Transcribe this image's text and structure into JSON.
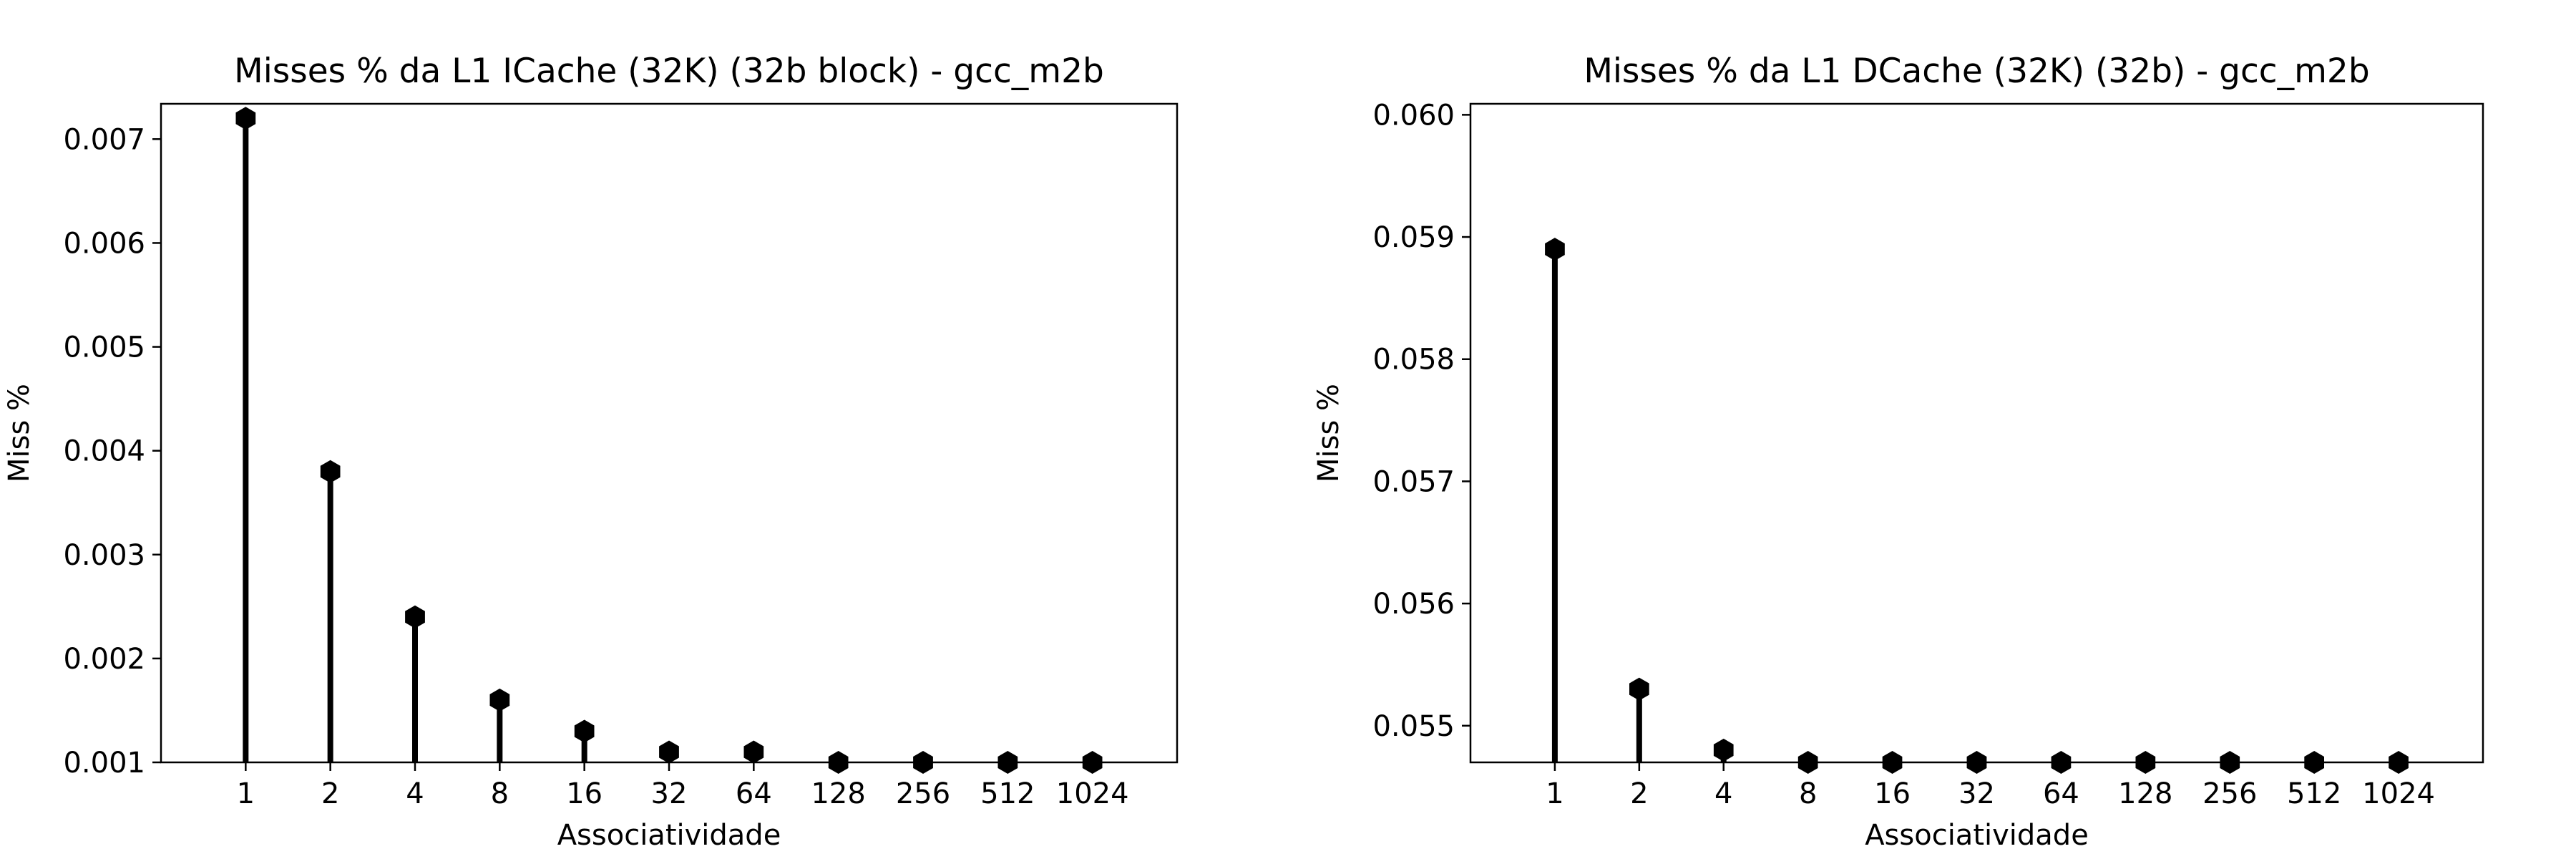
{
  "chart_data": [
    {
      "type": "stem",
      "title": "Misses % da L1 ICache (32K) (32b block) - gcc_m2b",
      "xlabel": "Associatividade",
      "ylabel": "Miss %",
      "categories": [
        "1",
        "2",
        "4",
        "8",
        "16",
        "32",
        "64",
        "128",
        "256",
        "512",
        "1024"
      ],
      "values": [
        0.0072,
        0.0038,
        0.0024,
        0.0016,
        0.0013,
        0.0011,
        0.0011,
        0.001,
        0.001,
        0.001,
        0.001
      ],
      "ylim": [
        0.001,
        0.00734
      ],
      "yticks": [
        0.001,
        0.002,
        0.003,
        0.004,
        0.005,
        0.006,
        0.007
      ],
      "ytick_labels": [
        "0.001",
        "0.002",
        "0.003",
        "0.004",
        "0.005",
        "0.006",
        "0.007"
      ],
      "grid": false,
      "color": "#000000",
      "marker": "hexagon"
    },
    {
      "type": "stem",
      "title": "Misses % da L1 DCache (32K) (32b) - gcc_m2b",
      "xlabel": "Associatividade",
      "ylabel": "Miss %",
      "categories": [
        "1",
        "2",
        "4",
        "8",
        "16",
        "32",
        "64",
        "128",
        "256",
        "512",
        "1024"
      ],
      "values": [
        0.0589,
        0.0553,
        0.0548,
        0.0547,
        0.0547,
        0.0547,
        0.0547,
        0.0547,
        0.0547,
        0.0547,
        0.0547
      ],
      "ylim": [
        0.0547,
        0.06009
      ],
      "yticks": [
        0.055,
        0.056,
        0.057,
        0.058,
        0.059,
        0.06
      ],
      "ytick_labels": [
        "0.055",
        "0.056",
        "0.057",
        "0.058",
        "0.059",
        "0.060"
      ],
      "grid": false,
      "color": "#000000",
      "marker": "hexagon"
    }
  ]
}
